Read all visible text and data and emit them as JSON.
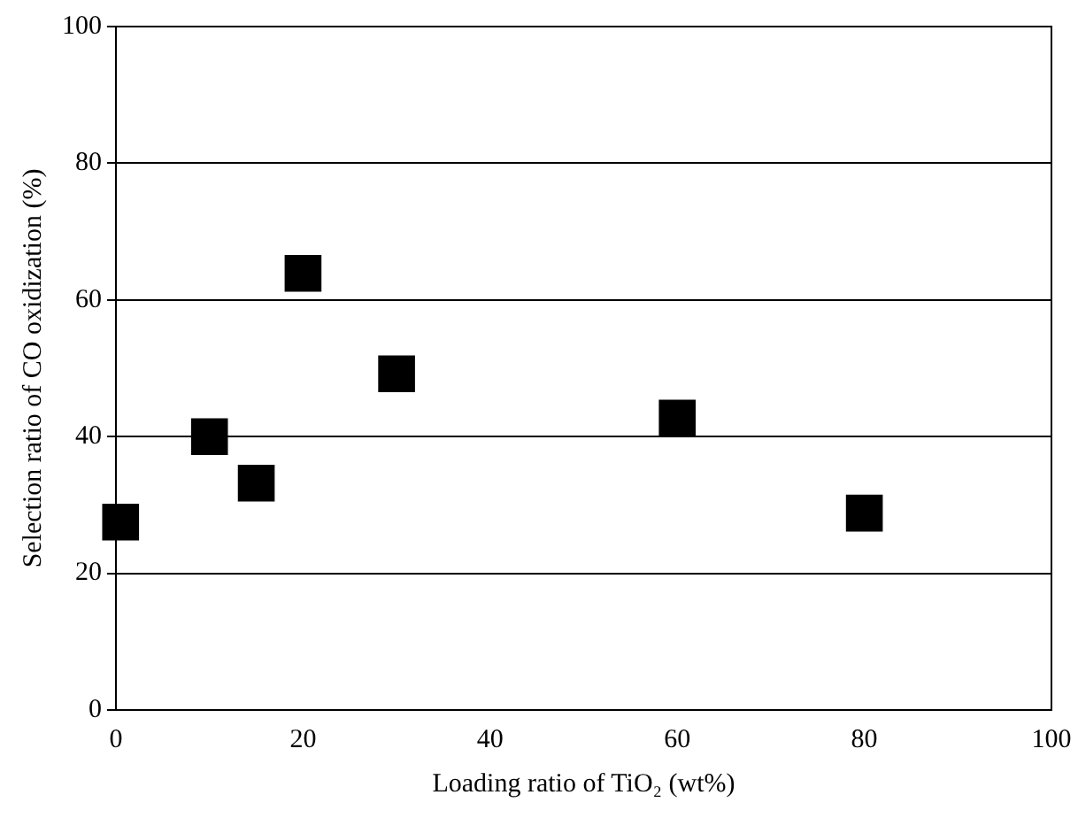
{
  "chart_data": {
    "type": "scatter",
    "xlabel": "Loading ratio of TiO₂ (wt%)",
    "ylabel": "Selection ratio of CO oxidization (%)",
    "x": [
      0.5,
      10,
      15,
      20,
      30,
      60,
      80
    ],
    "series": [
      {
        "color": "#000000",
        "values": [
          27.5,
          40,
          33.2,
          63.9,
          49.2,
          42.7,
          28.8
        ]
      }
    ],
    "xlim": [
      0,
      100
    ],
    "xticks": [
      0,
      20,
      40,
      60,
      80,
      100
    ],
    "ylim": [
      0,
      100
    ],
    "yticks": [
      0,
      20,
      40,
      60,
      80,
      100
    ],
    "grid": "y",
    "marker": "square",
    "legend": false
  }
}
